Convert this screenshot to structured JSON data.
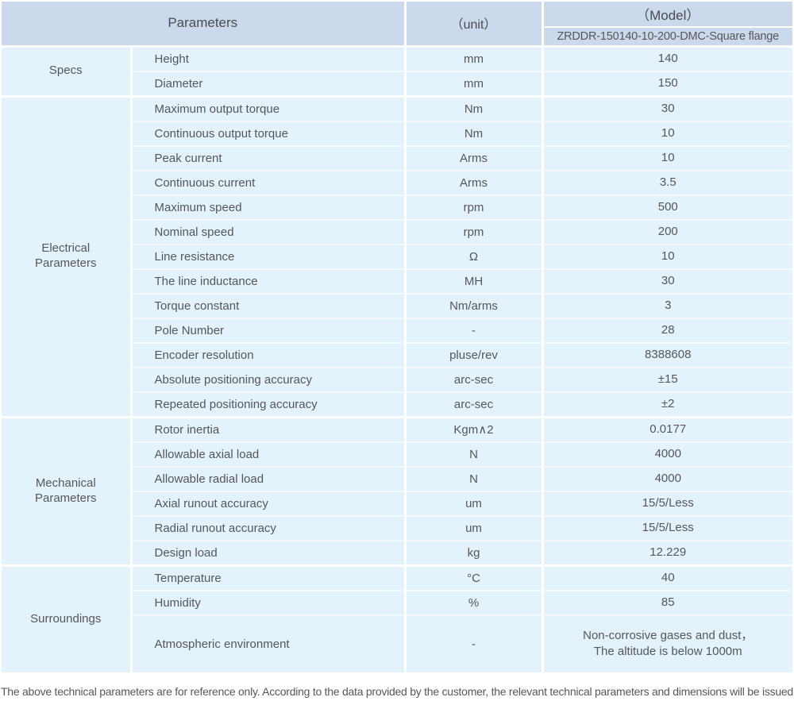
{
  "header": {
    "parameters_label": "Parameters",
    "unit_label": "（unit）",
    "model_label": "（Model）",
    "model_value": "ZRDDR-150140-10-200-DMC-Square flange"
  },
  "groups": [
    {
      "id": "specs",
      "label": "Specs",
      "rows": [
        [
          "Height",
          "mm",
          "140"
        ],
        [
          "Diameter",
          "mm",
          "150"
        ]
      ]
    },
    {
      "id": "electrical-parameters",
      "label": "Electrical\nParameters",
      "rows": [
        [
          "Maximum output torque",
          "Nm",
          "30"
        ],
        [
          "Continuous output torque",
          "Nm",
          "10"
        ],
        [
          "Peak current",
          "Arms",
          "10"
        ],
        [
          "Continuous current",
          "Arms",
          "3.5"
        ],
        [
          "Maximum speed",
          "rpm",
          "500"
        ],
        [
          "Nominal speed",
          "rpm",
          "200"
        ],
        [
          "Line resistance",
          "Ω",
          "10"
        ],
        [
          "The line inductance",
          "MH",
          "30"
        ],
        [
          "Torque constant",
          "Nm/arms",
          "3"
        ],
        [
          "Pole Number",
          "-",
          "28"
        ],
        [
          "Encoder resolution",
          "pluse/rev",
          "8388608"
        ],
        [
          "Absolute positioning accuracy",
          "arc-sec",
          "±15"
        ],
        [
          "Repeated positioning accuracy",
          "arc-sec",
          "±2"
        ]
      ]
    },
    {
      "id": "mechanical-parameters",
      "label": "Mechanical\nParameters",
      "rows": [
        [
          "Rotor inertia",
          "Kgm∧2",
          "0.0177"
        ],
        [
          "Allowable axial load",
          "N",
          "4000"
        ],
        [
          "Allowable radial load",
          "N",
          "4000"
        ],
        [
          "Axial runout accuracy",
          "um",
          "15/5/Less"
        ],
        [
          "Radial runout accuracy",
          "um",
          "15/5/Less"
        ],
        [
          "Design load",
          "kg",
          "12.229"
        ]
      ]
    },
    {
      "id": "surroundings",
      "label": "Surroundings",
      "rows": [
        [
          "Temperature",
          "°C",
          "40"
        ],
        [
          "Humidity",
          "%",
          "85"
        ],
        [
          "Atmospheric environment",
          "-",
          "Non-corrosive gases and dust，\nThe altitude is below 1000m"
        ]
      ]
    }
  ],
  "footer": {
    "note": "The above technical parameters are for reference only. According to the data provided by the customer, the relevant technical parameters and dimensions will be issued."
  },
  "colors": {
    "header_bg": "#ccd8ec",
    "row_bg": "#e4f2fb",
    "row_divider": "#f3fafd",
    "group_divider": "#ffffff",
    "text": "#54575a",
    "footer_text": "#595757"
  }
}
